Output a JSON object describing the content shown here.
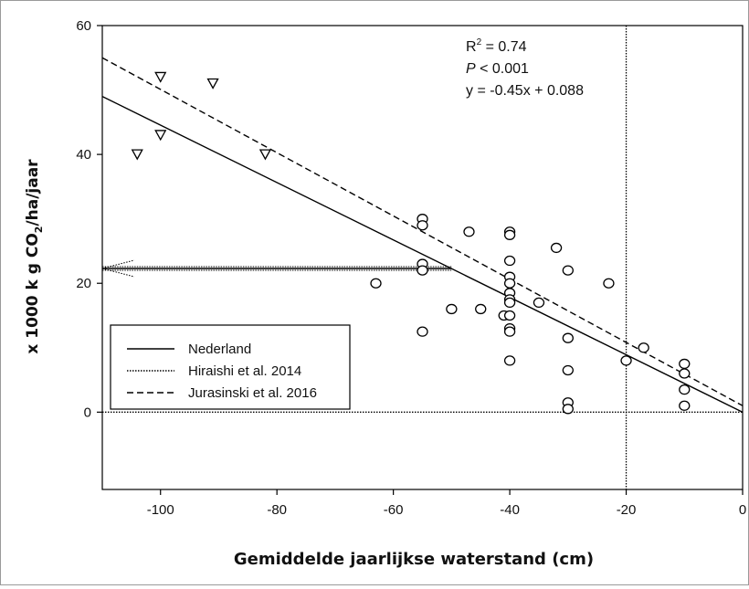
{
  "chart_data": {
    "type": "scatter",
    "title": "",
    "xlabel": "Gemiddelde jaarlijkse waterstand (cm)",
    "ylabel": "x 1000 kg CO2/ha/jaar",
    "ylabel_parts": {
      "prefix": "x 1000 k g CO",
      "subscript": "2",
      "suffix": "/ha/jaar"
    },
    "xlim": [
      -110,
      0
    ],
    "ylim": [
      -12,
      60
    ],
    "xticks": [
      -100,
      -80,
      -60,
      -40,
      -20,
      0
    ],
    "xtick_labels": [
      "-100",
      "-80",
      "-60",
      "-40",
      "-20",
      "0"
    ],
    "yticks": [
      0,
      20,
      40,
      60
    ],
    "ytick_labels": [
      "0",
      "20",
      "40",
      "60"
    ],
    "grid": false,
    "legend_position": "lower-left",
    "stats": {
      "r2_prefix": "R",
      "r2_sup": "2",
      "r2_value": " = 0.74",
      "p_italic": "P",
      "p_rest": " < 0.001",
      "equation": "y = -0.45x + 0.088"
    },
    "legend": [
      {
        "label": "Nederland",
        "style": "solid"
      },
      {
        "label": "Hiraishi et al. 2014",
        "style": "dotted"
      },
      {
        "label": "Jurasinski et al. 2016",
        "style": "dashed"
      }
    ],
    "lines": [
      {
        "name": "Nederland",
        "style": "solid",
        "x": [
          -110,
          0
        ],
        "y": [
          49.0,
          0.0
        ]
      },
      {
        "name": "Jurasinski et al. 2016",
        "style": "dashed",
        "x": [
          -110,
          0
        ],
        "y": [
          55.0,
          1.0
        ]
      }
    ],
    "reference_lines": {
      "horizontal_dotted_y": 0,
      "vertical_dotted_x": -20,
      "arrow_y": 22.3,
      "arrow_x_from": -50,
      "arrow_x_to": -110
    },
    "series": [
      {
        "marker": "triangle-down",
        "x": [
          -104,
          -100,
          -100,
          -91,
          -82
        ],
        "y": [
          40,
          52,
          43,
          51,
          40
        ]
      },
      {
        "marker": "circle",
        "x": [
          -63,
          -55,
          -55,
          -55,
          -55,
          -55,
          -50,
          -47,
          -45,
          -41,
          -40,
          -40,
          -40,
          -40,
          -40,
          -40,
          -40,
          -40,
          -40,
          -40,
          -40,
          -40,
          -35,
          -32,
          -30,
          -30,
          -30,
          -30,
          -30,
          -23,
          -20,
          -17,
          -10,
          -10,
          -10,
          -10
        ],
        "y": [
          20,
          30,
          29,
          23,
          22,
          12.5,
          16,
          28,
          16,
          15,
          28,
          27.5,
          23.5,
          21,
          20,
          18.5,
          17.5,
          17,
          15,
          13,
          8,
          12.5,
          17,
          25.5,
          22,
          11.5,
          6.5,
          1.5,
          0.5,
          20,
          8,
          10,
          7.5,
          6,
          3.5,
          1
        ]
      }
    ]
  }
}
